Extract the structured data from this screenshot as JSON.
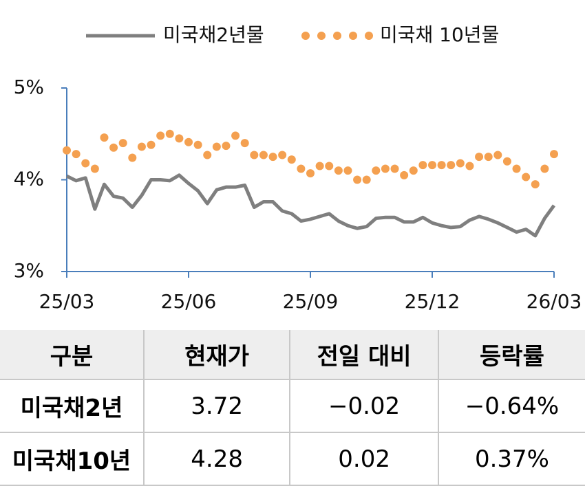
{
  "chart_data": {
    "type": "line",
    "categories": [
      "25/03",
      null,
      null,
      null,
      null,
      null,
      null,
      null,
      null,
      null,
      null,
      null,
      null,
      "25/06",
      null,
      null,
      null,
      null,
      null,
      null,
      null,
      null,
      null,
      null,
      null,
      null,
      "25/09",
      null,
      null,
      null,
      null,
      null,
      null,
      null,
      null,
      null,
      null,
      null,
      null,
      "25/12",
      null,
      null,
      null,
      null,
      null,
      null,
      null,
      null,
      null,
      null,
      null,
      null,
      "26/03"
    ],
    "series": [
      {
        "name": "미국채2년물",
        "color": "#7f7f7f",
        "style": "line",
        "values": [
          4.04,
          3.99,
          4.02,
          3.68,
          3.95,
          3.82,
          3.8,
          3.7,
          3.83,
          4.0,
          4.0,
          3.99,
          4.05,
          3.96,
          3.88,
          3.74,
          3.89,
          3.92,
          3.92,
          3.94,
          3.7,
          3.76,
          3.76,
          3.66,
          3.63,
          3.55,
          3.57,
          3.6,
          3.63,
          3.55,
          3.5,
          3.47,
          3.49,
          3.58,
          3.59,
          3.59,
          3.54,
          3.54,
          3.59,
          3.53,
          3.5,
          3.48,
          3.49,
          3.56,
          3.6,
          3.57,
          3.53,
          3.48,
          3.43,
          3.46,
          3.39,
          3.58,
          3.72
        ]
      },
      {
        "name": "미국채 10년물",
        "color": "#f4a050",
        "style": "dots",
        "values": [
          4.32,
          4.28,
          4.18,
          4.12,
          4.46,
          4.35,
          4.4,
          4.24,
          4.36,
          4.38,
          4.48,
          4.5,
          4.45,
          4.41,
          4.38,
          4.27,
          4.36,
          4.37,
          4.48,
          4.4,
          4.27,
          4.27,
          4.25,
          4.27,
          4.22,
          4.12,
          4.07,
          4.15,
          4.15,
          4.1,
          4.1,
          4.0,
          4.0,
          4.1,
          4.12,
          4.12,
          4.05,
          4.1,
          4.16,
          4.16,
          4.16,
          4.16,
          4.18,
          4.15,
          4.25,
          4.25,
          4.27,
          4.2,
          4.12,
          4.03,
          3.95,
          4.12,
          4.28
        ]
      }
    ],
    "ylim": [
      3,
      5
    ],
    "yticks": [
      {
        "value": 3,
        "label": "3%"
      },
      {
        "value": 4,
        "label": "4%"
      },
      {
        "value": 5,
        "label": "5%"
      }
    ],
    "axis_color": "#4a7ebb",
    "grid": false
  },
  "table": {
    "header": [
      "구분",
      "현재가",
      "전일 대비",
      "등락률"
    ],
    "rows": [
      [
        "미국채2년",
        "3.72",
        "−0.02",
        "−0.64%"
      ],
      [
        "미국채10년",
        "4.28",
        "0.02",
        "0.37%"
      ]
    ]
  }
}
